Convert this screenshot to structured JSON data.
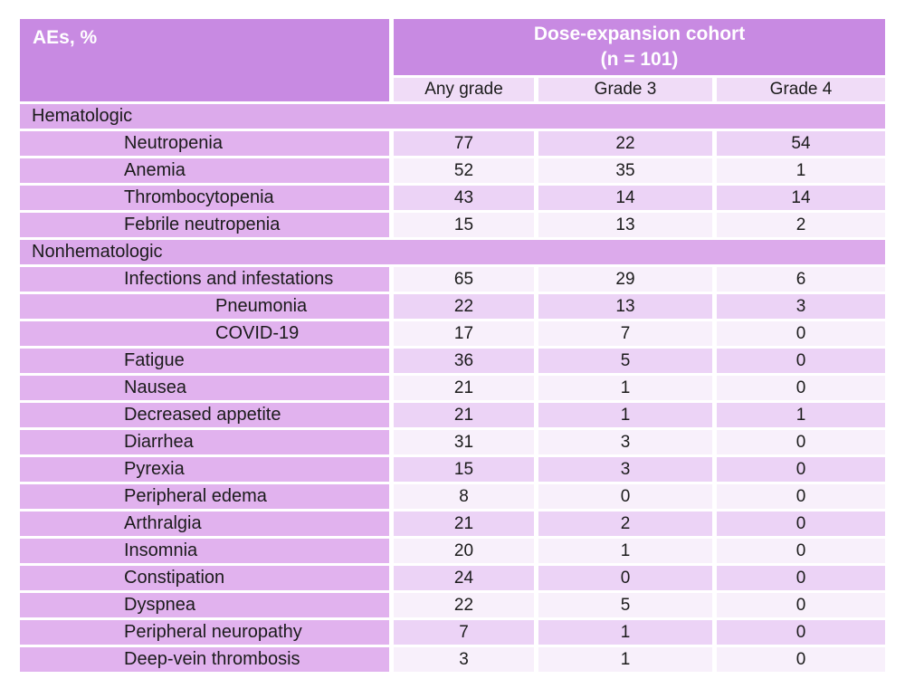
{
  "colors": {
    "header_purple": "#c88ae2",
    "subheader_lavender": "#f0dcf7",
    "section_purple": "#dcaaeb",
    "label_purple": "#e1b2ee",
    "band_purple": "#ecd3f6",
    "band_light": "#f8f0fb",
    "header_text": "#ffffff",
    "body_text": "#1b1b1b"
  },
  "chart_data": {
    "type": "table",
    "corner_header": "AEs, %",
    "group_header": "Dose-expansion cohort",
    "group_subheader": "(n = 101)",
    "columns": [
      "Any grade",
      "Grade 3",
      "Grade 4"
    ],
    "rows": [
      {
        "kind": "section",
        "label": "Hematologic"
      },
      {
        "kind": "ae",
        "indent": 1,
        "band": "dark",
        "label": "Neutropenia",
        "values": [
          77,
          22,
          54
        ]
      },
      {
        "kind": "ae",
        "indent": 1,
        "band": "light",
        "label": "Anemia",
        "values": [
          52,
          35,
          1
        ]
      },
      {
        "kind": "ae",
        "indent": 1,
        "band": "dark",
        "label": "Thrombocytopenia",
        "values": [
          43,
          14,
          14
        ]
      },
      {
        "kind": "ae",
        "indent": 1,
        "band": "light",
        "label": "Febrile neutropenia",
        "values": [
          15,
          13,
          2
        ]
      },
      {
        "kind": "section",
        "label": "Nonhematologic"
      },
      {
        "kind": "ae",
        "indent": 1,
        "band": "light",
        "label": "Infections and infestations",
        "values": [
          65,
          29,
          6
        ]
      },
      {
        "kind": "ae",
        "indent": 2,
        "band": "dark",
        "label": "Pneumonia",
        "values": [
          22,
          13,
          3
        ]
      },
      {
        "kind": "ae",
        "indent": 2,
        "band": "light",
        "label": "COVID-19",
        "values": [
          17,
          7,
          0
        ]
      },
      {
        "kind": "ae",
        "indent": 1,
        "band": "dark",
        "label": "Fatigue",
        "values": [
          36,
          5,
          0
        ]
      },
      {
        "kind": "ae",
        "indent": 1,
        "band": "light",
        "label": "Nausea",
        "values": [
          21,
          1,
          0
        ]
      },
      {
        "kind": "ae",
        "indent": 1,
        "band": "dark",
        "label": "Decreased appetite",
        "values": [
          21,
          1,
          1
        ]
      },
      {
        "kind": "ae",
        "indent": 1,
        "band": "light",
        "label": "Diarrhea",
        "values": [
          31,
          3,
          0
        ]
      },
      {
        "kind": "ae",
        "indent": 1,
        "band": "dark",
        "label": "Pyrexia",
        "values": [
          15,
          3,
          0
        ]
      },
      {
        "kind": "ae",
        "indent": 1,
        "band": "light",
        "label": "Peripheral edema",
        "values": [
          8,
          0,
          0
        ]
      },
      {
        "kind": "ae",
        "indent": 1,
        "band": "dark",
        "label": "Arthralgia",
        "values": [
          21,
          2,
          0
        ]
      },
      {
        "kind": "ae",
        "indent": 1,
        "band": "light",
        "label": "Insomnia",
        "values": [
          20,
          1,
          0
        ]
      },
      {
        "kind": "ae",
        "indent": 1,
        "band": "dark",
        "label": "Constipation",
        "values": [
          24,
          0,
          0
        ]
      },
      {
        "kind": "ae",
        "indent": 1,
        "band": "light",
        "label": "Dyspnea",
        "values": [
          22,
          5,
          0
        ]
      },
      {
        "kind": "ae",
        "indent": 1,
        "band": "dark",
        "label": "Peripheral neuropathy",
        "values": [
          7,
          1,
          0
        ]
      },
      {
        "kind": "ae",
        "indent": 1,
        "band": "light",
        "label": "Deep-vein thrombosis",
        "values": [
          3,
          1,
          0
        ]
      }
    ]
  }
}
